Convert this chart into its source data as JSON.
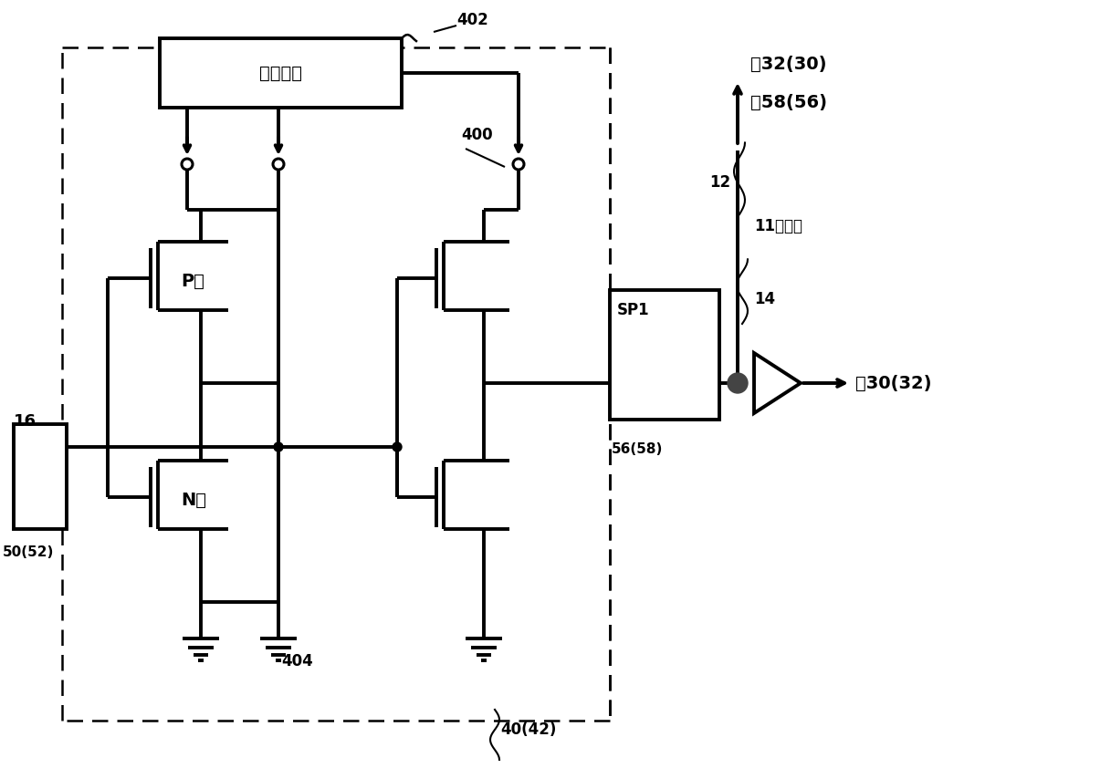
{
  "bg_color": "#ffffff",
  "lc": "#000000",
  "fig_width": 12.17,
  "fig_height": 8.42,
  "dpi": 100,
  "texts": {
    "power_circuit": "电源电路",
    "p_type": "P型",
    "n_type": "N型",
    "sp1": "SP1",
    "num_402": "402",
    "num_400": "400",
    "num_404": "404",
    "num_40_42": "40(42)",
    "num_50_52": "50(52)",
    "num_16": "16",
    "num_14": "14",
    "num_12": "12",
    "num_11": "11的情况",
    "num_56_58": "56(58)",
    "to_32_30": "向32(30)",
    "de_58_56": "的58(56)",
    "to_30_32": "向30(32)"
  }
}
